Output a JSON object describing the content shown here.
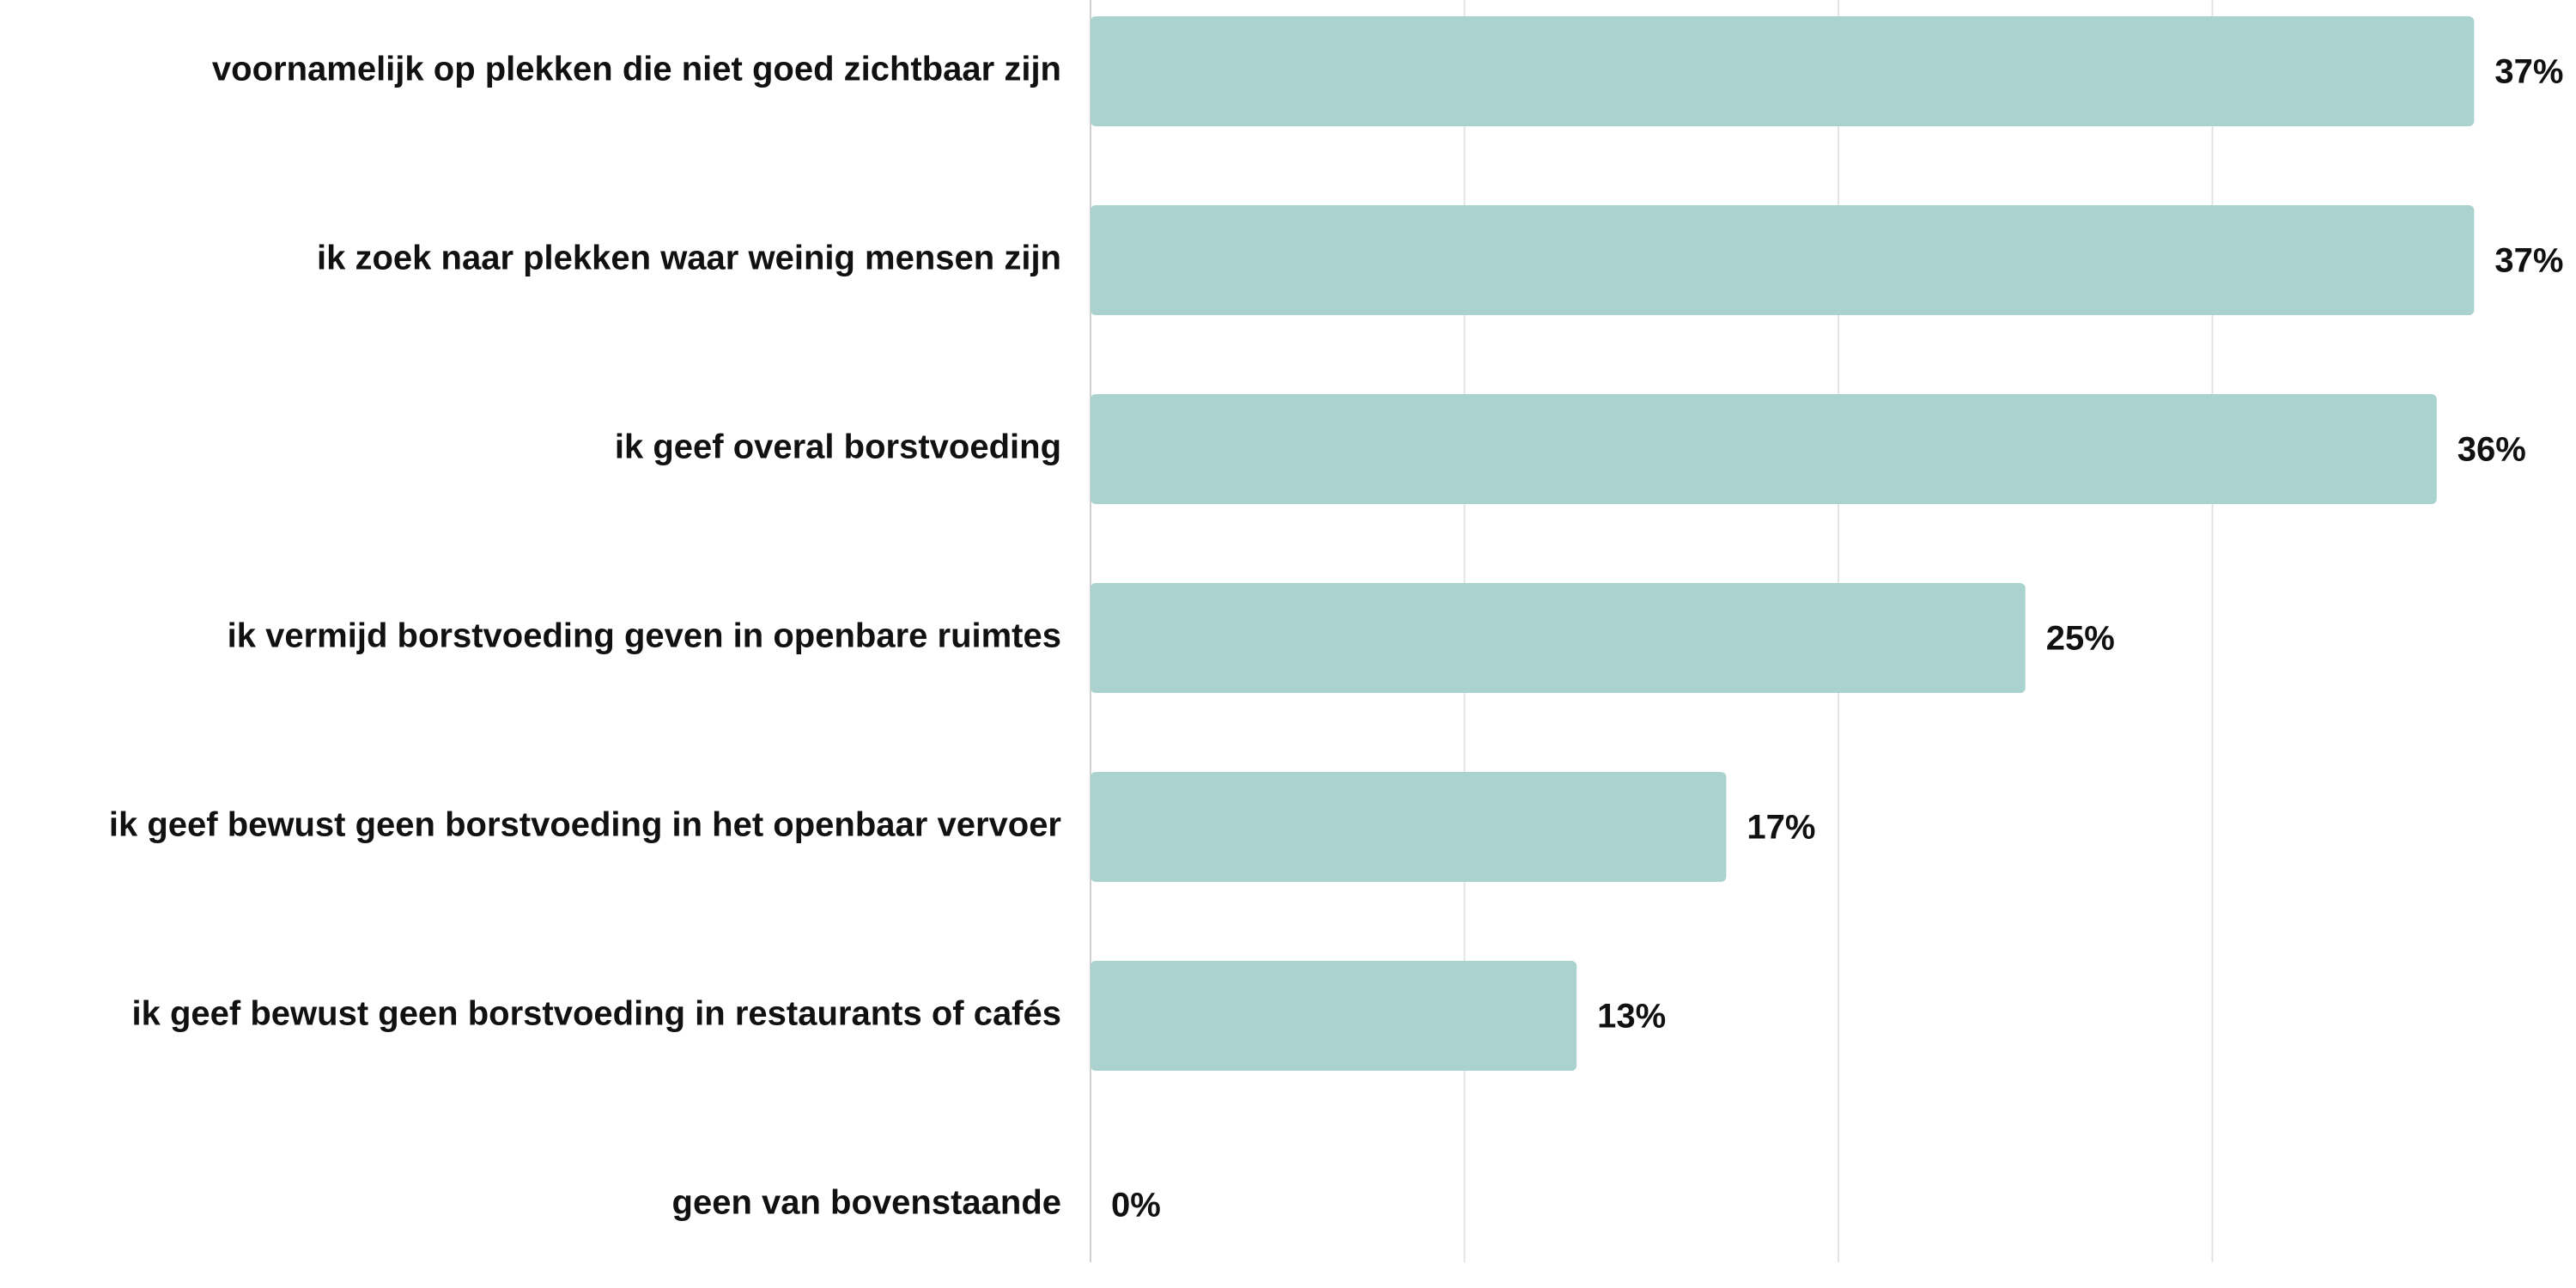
{
  "chart_data": {
    "type": "bar",
    "orientation": "horizontal",
    "categories": [
      "voornamelijk op plekken die niet goed zichtbaar zijn",
      "ik zoek naar plekken waar weinig mensen zijn",
      "ik geef overal borstvoeding",
      "ik vermijd borstvoeding geven in openbare ruimtes",
      "ik geef bewust geen borstvoeding in het openbaar vervoer",
      "ik geef bewust geen borstvoeding in restaurants of cafés",
      "geen van bovenstaande"
    ],
    "values": [
      37,
      37,
      36,
      25,
      17,
      13,
      0
    ],
    "value_labels": [
      "37%",
      "37%",
      "36%",
      "25%",
      "17%",
      "13%",
      "0%"
    ],
    "xlim": [
      0,
      40
    ],
    "gridlines": [
      0,
      10,
      20,
      30
    ],
    "grid": true,
    "bar_color": "#aad2cf",
    "title": "",
    "xlabel": "",
    "ylabel": ""
  }
}
